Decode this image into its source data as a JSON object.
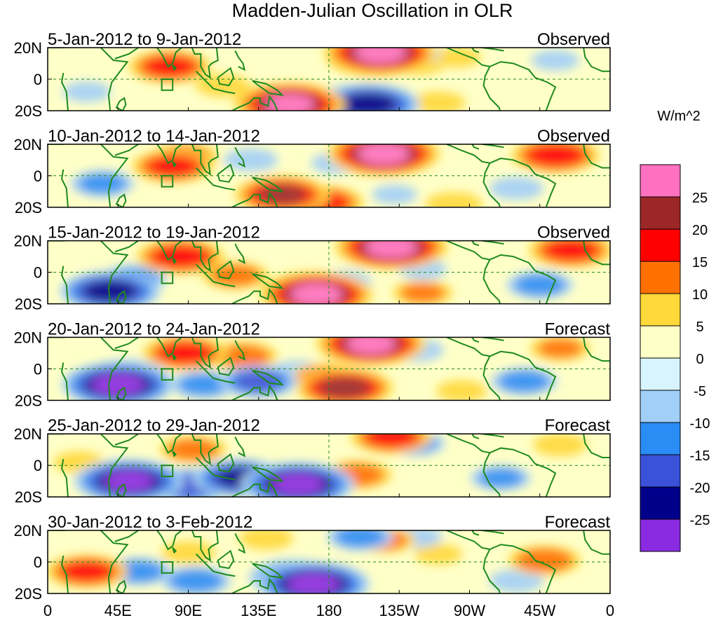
{
  "chart_data": {
    "type": "heatmap",
    "title": "Madden-Julian Oscillation in OLR",
    "units_label": "W/m^2",
    "x_ticks": [
      "0",
      "45E",
      "90E",
      "135E",
      "180",
      "135W",
      "90W",
      "45W",
      "0"
    ],
    "x_values": [
      0,
      45,
      90,
      135,
      180,
      225,
      270,
      315,
      360
    ],
    "y_ticks": [
      "20N",
      "0",
      "20S"
    ],
    "y_values": [
      20,
      0,
      -20
    ],
    "xlim": [
      0,
      360
    ],
    "ylim": [
      -20,
      20
    ],
    "colorbar": {
      "labels": [
        "25",
        "20",
        "15",
        "10",
        "5",
        "0",
        "-5",
        "-10",
        "-15",
        "-20",
        "-25"
      ],
      "colors": [
        "#ff70c0",
        "#9b2727",
        "#ff0000",
        "#ff7000",
        "#ffd83a",
        "#ffffc8",
        "#d8f4ff",
        "#a2cff8",
        "#2a8cf5",
        "#3a52d8",
        "#00008b",
        "#8a2be2"
      ]
    },
    "panels": [
      {
        "period": "5-Jan-2012 to 9-Jan-2012",
        "kind": "Observed",
        "anomalies": [
          {
            "lon": 78,
            "lat": 8,
            "value": 17
          },
          {
            "lon": 112,
            "lat": -4,
            "value": 8
          },
          {
            "lon": 150,
            "lat": -15,
            "value": 22
          },
          {
            "lon": 155,
            "lat": -16,
            "value": 26
          },
          {
            "lon": 210,
            "lat": 14,
            "value": 23
          },
          {
            "lon": 213,
            "lat": 17,
            "value": 27
          },
          {
            "lon": 238,
            "lat": 10,
            "value": 8
          },
          {
            "lon": 262,
            "lat": 14,
            "value": 6
          },
          {
            "lon": 25,
            "lat": -8,
            "value": -6
          },
          {
            "lon": 195,
            "lat": -13,
            "value": -14
          },
          {
            "lon": 205,
            "lat": -16,
            "value": -24
          },
          {
            "lon": 232,
            "lat": 16,
            "value": -10
          },
          {
            "lon": 250,
            "lat": -15,
            "value": 8
          },
          {
            "lon": 325,
            "lat": 12,
            "value": -6
          }
        ]
      },
      {
        "period": "10-Jan-2012 to 14-Jan-2012",
        "kind": "Observed",
        "anomalies": [
          {
            "lon": 80,
            "lat": 6,
            "value": 17
          },
          {
            "lon": 88,
            "lat": 12,
            "value": 12
          },
          {
            "lon": 150,
            "lat": -12,
            "value": 21
          },
          {
            "lon": 175,
            "lat": -17,
            "value": 18
          },
          {
            "lon": 215,
            "lat": 14,
            "value": 27
          },
          {
            "lon": 325,
            "lat": 13,
            "value": 19
          },
          {
            "lon": 35,
            "lat": -5,
            "value": -11
          },
          {
            "lon": 130,
            "lat": 10,
            "value": -8
          },
          {
            "lon": 185,
            "lat": 8,
            "value": -7
          },
          {
            "lon": 222,
            "lat": -12,
            "value": -5
          },
          {
            "lon": 300,
            "lat": -8,
            "value": -8
          },
          {
            "lon": 260,
            "lat": -18,
            "value": 9
          }
        ]
      },
      {
        "period": "15-Jan-2012 to 19-Jan-2012",
        "kind": "Observed",
        "anomalies": [
          {
            "lon": 85,
            "lat": 10,
            "value": 19
          },
          {
            "lon": 120,
            "lat": -2,
            "value": 12
          },
          {
            "lon": 168,
            "lat": -12,
            "value": 22
          },
          {
            "lon": 172,
            "lat": -14,
            "value": 27
          },
          {
            "lon": 220,
            "lat": 16,
            "value": 27
          },
          {
            "lon": 335,
            "lat": 14,
            "value": 18
          },
          {
            "lon": 40,
            "lat": -12,
            "value": -23
          },
          {
            "lon": 55,
            "lat": -4,
            "value": -12
          },
          {
            "lon": 190,
            "lat": -6,
            "value": -8
          },
          {
            "lon": 240,
            "lat": 2,
            "value": -6
          },
          {
            "lon": 315,
            "lat": -8,
            "value": -12
          },
          {
            "lon": 240,
            "lat": -13,
            "value": 10
          }
        ]
      },
      {
        "period": "20-Jan-2012 to 24-Jan-2012",
        "kind": "Forecast",
        "anomalies": [
          {
            "lon": 88,
            "lat": 10,
            "value": 18
          },
          {
            "lon": 125,
            "lat": 8,
            "value": 13
          },
          {
            "lon": 178,
            "lat": -6,
            "value": 14
          },
          {
            "lon": 190,
            "lat": -12,
            "value": 22
          },
          {
            "lon": 207,
            "lat": 16,
            "value": 26
          },
          {
            "lon": 328,
            "lat": 13,
            "value": 10
          },
          {
            "lon": 45,
            "lat": -10,
            "value": -27
          },
          {
            "lon": 50,
            "lat": -5,
            "value": -18
          },
          {
            "lon": 100,
            "lat": -10,
            "value": -12
          },
          {
            "lon": 135,
            "lat": -8,
            "value": -16
          },
          {
            "lon": 160,
            "lat": -2,
            "value": -8
          },
          {
            "lon": 235,
            "lat": 12,
            "value": -9
          },
          {
            "lon": 305,
            "lat": -8,
            "value": -12
          },
          {
            "lon": 265,
            "lat": -14,
            "value": 7
          }
        ]
      },
      {
        "period": "25-Jan-2012 to 29-Jan-2012",
        "kind": "Forecast",
        "anomalies": [
          {
            "lon": 93,
            "lat": 10,
            "value": 12
          },
          {
            "lon": 198,
            "lat": -6,
            "value": 13
          },
          {
            "lon": 220,
            "lat": 18,
            "value": 17
          },
          {
            "lon": 328,
            "lat": 13,
            "value": 8
          },
          {
            "lon": 20,
            "lat": 2,
            "value": 7
          },
          {
            "lon": 52,
            "lat": -10,
            "value": -26
          },
          {
            "lon": 90,
            "lat": -13,
            "value": -18
          },
          {
            "lon": 123,
            "lat": -8,
            "value": -21
          },
          {
            "lon": 160,
            "lat": -12,
            "value": -27
          },
          {
            "lon": 235,
            "lat": 14,
            "value": -10
          },
          {
            "lon": 290,
            "lat": -8,
            "value": -10
          }
        ]
      },
      {
        "period": "30-Jan-2012 to 3-Feb-2012",
        "kind": "Forecast",
        "anomalies": [
          {
            "lon": 25,
            "lat": -6,
            "value": 17
          },
          {
            "lon": 90,
            "lat": 6,
            "value": 8
          },
          {
            "lon": 140,
            "lat": 15,
            "value": 8
          },
          {
            "lon": 215,
            "lat": 14,
            "value": 11
          },
          {
            "lon": 250,
            "lat": 5,
            "value": 6
          },
          {
            "lon": 318,
            "lat": 1,
            "value": 14
          },
          {
            "lon": 58,
            "lat": -6,
            "value": -12
          },
          {
            "lon": 95,
            "lat": -12,
            "value": -13
          },
          {
            "lon": 170,
            "lat": -14,
            "value": -27
          },
          {
            "lon": 158,
            "lat": -10,
            "value": -20
          },
          {
            "lon": 200,
            "lat": 16,
            "value": -12
          },
          {
            "lon": 236,
            "lat": 16,
            "value": -7
          },
          {
            "lon": 300,
            "lat": -12,
            "value": -8
          }
        ]
      }
    ]
  }
}
